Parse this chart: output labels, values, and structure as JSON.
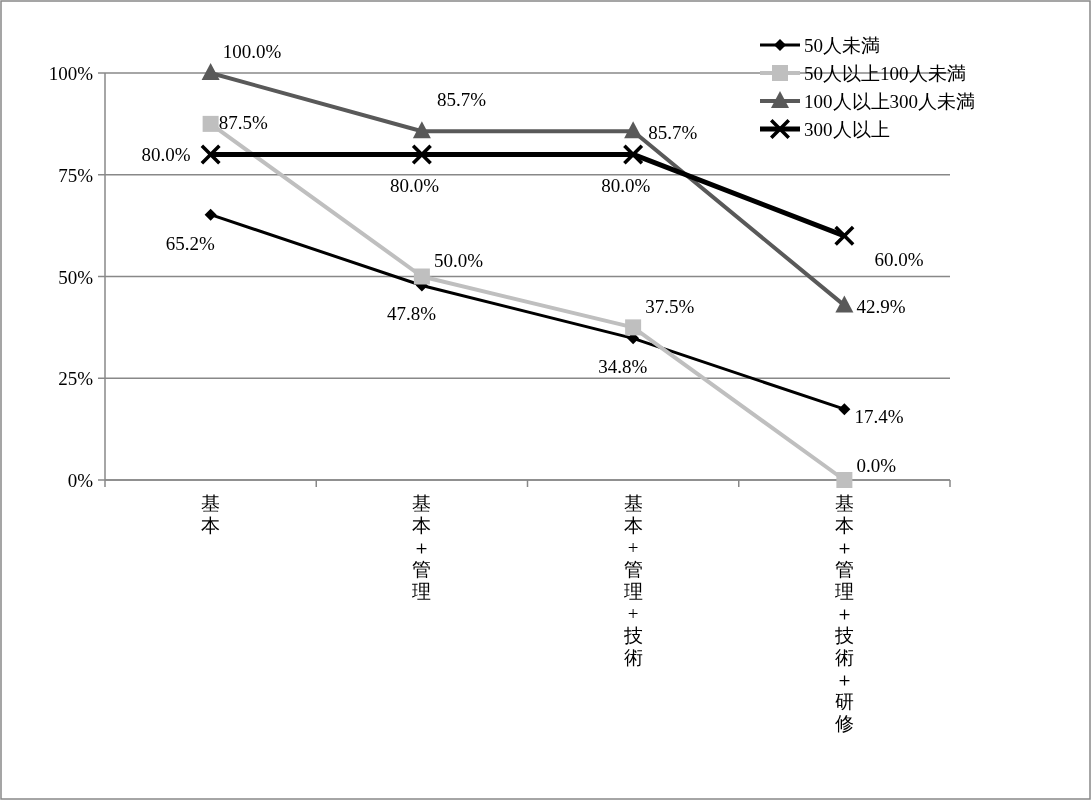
{
  "chart_data": {
    "type": "line",
    "categories": [
      "基本",
      "基本＋管理",
      "基本+管理+技術",
      "基本＋管理＋技術＋研修"
    ],
    "series": [
      {
        "name": "50人未満",
        "color": "#000000",
        "marker": "diamond",
        "values": [
          65.2,
          47.8,
          34.8,
          17.4
        ],
        "value_labels": [
          "65.2%",
          "47.8%",
          "34.8%",
          "17.4%"
        ]
      },
      {
        "name": "50人以上100人未満",
        "color": "#bfbfbf",
        "marker": "square",
        "values": [
          87.5,
          50.0,
          37.5,
          0.0
        ],
        "value_labels": [
          "87.5%",
          "50.0%",
          "37.5%",
          "0.0%"
        ]
      },
      {
        "name": "100人以上300人未満",
        "color": "#595959",
        "marker": "triangle",
        "values": [
          100.0,
          85.7,
          85.7,
          42.9
        ],
        "value_labels": [
          "100.0%",
          "85.7%",
          "85.7%",
          "42.9%"
        ]
      },
      {
        "name": "300人以上",
        "color": "#000000",
        "marker": "cross",
        "values": [
          80.0,
          80.0,
          80.0,
          60.0
        ],
        "value_labels": [
          "80.0%",
          "80.0%",
          "80.0%",
          "60.0%"
        ]
      }
    ],
    "ylim": [
      0,
      100
    ],
    "yticks": [
      {
        "value": 0,
        "label": "0%"
      },
      {
        "value": 25,
        "label": "25%"
      },
      {
        "value": 50,
        "label": "50%"
      },
      {
        "value": 75,
        "label": "75%"
      },
      {
        "value": 100,
        "label": "100%"
      }
    ],
    "grid": "y",
    "legend": "top right",
    "line_style": "solid"
  }
}
